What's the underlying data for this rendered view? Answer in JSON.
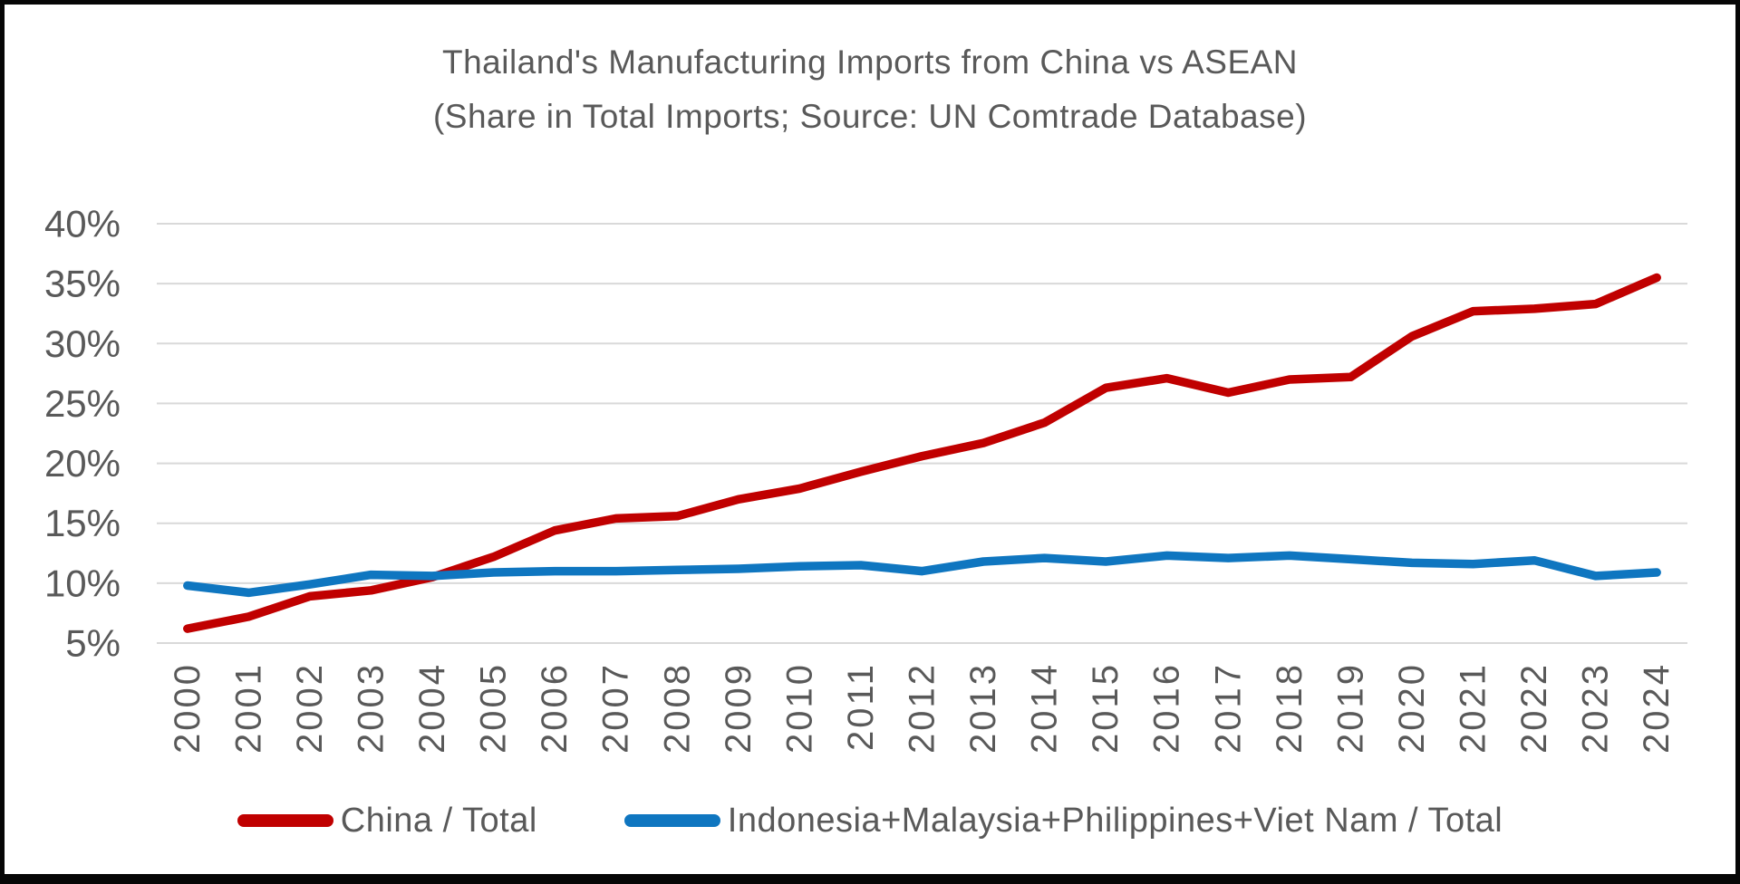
{
  "title": {
    "line1": "Thailand's Manufacturing Imports from China vs ASEAN",
    "line2": "(Share in Total Imports; Source: UN Comtrade Database)"
  },
  "colors": {
    "background": "#FFFFFF",
    "border": "#060606",
    "text": "#595959",
    "gridline": "#D9D9D9",
    "china_red": "#C00000",
    "asean_blue": "#0F76C0"
  },
  "legend": {
    "items": [
      {
        "id": "china",
        "label": "China / Total",
        "color": "#C00000"
      },
      {
        "id": "asean4",
        "label": "Indonesia+Malaysia+Philippines+Viet Nam / Total",
        "color": "#0F76C0"
      }
    ]
  },
  "chart_data": {
    "type": "line",
    "title": "Thailand's Manufacturing Imports from China vs ASEAN",
    "subtitle": "(Share in Total Imports; Source: UN Comtrade Database)",
    "xlabel": "",
    "ylabel": "",
    "grid": true,
    "legend_position": "bottom",
    "x": [
      2000,
      2001,
      2002,
      2003,
      2004,
      2005,
      2006,
      2007,
      2008,
      2009,
      2010,
      2011,
      2012,
      2013,
      2014,
      2015,
      2016,
      2017,
      2018,
      2019,
      2020,
      2021,
      2022,
      2023,
      2024
    ],
    "y_axis": {
      "min": 5,
      "max": 40,
      "step": 5,
      "unit": "%",
      "ticks": [
        {
          "value": 40,
          "label": "40%"
        },
        {
          "value": 35,
          "label": "35%"
        },
        {
          "value": 30,
          "label": "30%"
        },
        {
          "value": 25,
          "label": "25%"
        },
        {
          "value": 20,
          "label": "20%"
        },
        {
          "value": 15,
          "label": "15%"
        },
        {
          "value": 10,
          "label": "10%"
        },
        {
          "value": 5,
          "label": "5%"
        }
      ]
    },
    "series": [
      {
        "id": "china",
        "name": "China / Total",
        "color": "#C00000",
        "values": [
          6.2,
          7.2,
          8.9,
          9.4,
          10.5,
          12.2,
          14.4,
          15.4,
          15.6,
          17.0,
          17.9,
          19.3,
          20.6,
          21.7,
          23.4,
          26.3,
          27.1,
          25.9,
          27.0,
          27.2,
          30.6,
          32.7,
          32.9,
          33.3,
          35.5
        ]
      },
      {
        "id": "asean4",
        "name": "Indonesia+Malaysia+Philippines+Viet Nam / Total",
        "color": "#0F76C0",
        "values": [
          9.8,
          9.2,
          9.9,
          10.7,
          10.6,
          10.9,
          11.0,
          11.0,
          11.1,
          11.2,
          11.4,
          11.5,
          11.0,
          11.8,
          12.1,
          11.8,
          12.3,
          12.1,
          12.3,
          12.0,
          11.7,
          11.6,
          11.9,
          10.6,
          10.9
        ]
      }
    ]
  }
}
